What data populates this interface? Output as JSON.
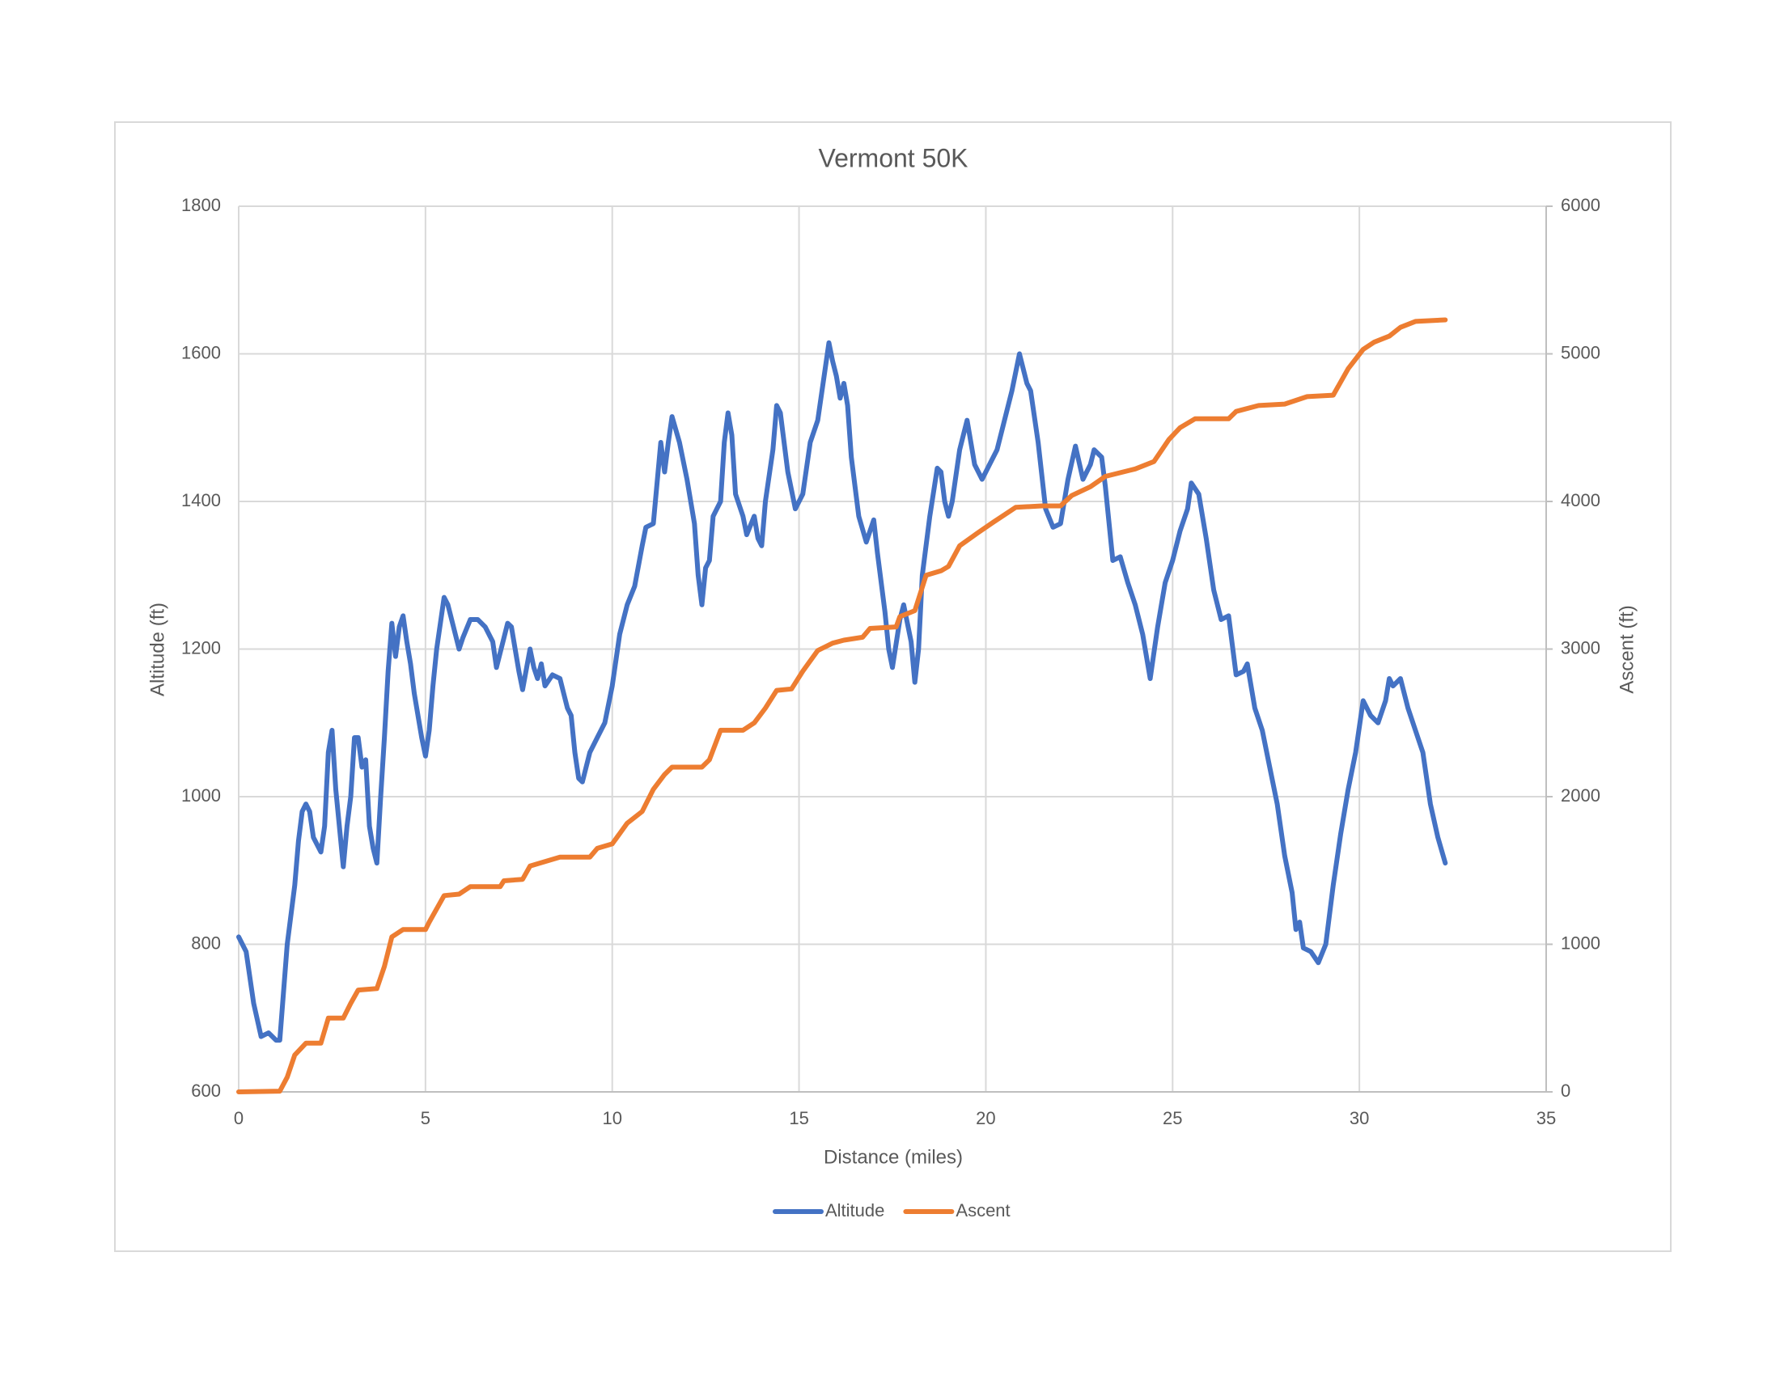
{
  "chart_data": {
    "type": "line",
    "title": "Vermont 50K",
    "x_label": "Distance (miles)",
    "y_label": "Altitude (ft)",
    "y2_label": "Ascent (ft)",
    "xlim": [
      0,
      35
    ],
    "xticks": [
      0,
      5,
      10,
      15,
      20,
      25,
      30,
      35
    ],
    "ylim": [
      600,
      1800
    ],
    "yticks": [
      600,
      800,
      1000,
      1200,
      1400,
      1600,
      1800
    ],
    "y2lim": [
      0,
      6000
    ],
    "y2ticks": [
      0,
      1000,
      2000,
      3000,
      4000,
      5000,
      6000
    ],
    "grid": true,
    "legend": "bottom",
    "series": [
      {
        "name": "Altitude",
        "color": "#4472c4",
        "x": [
          0,
          0.2,
          0.4,
          0.6,
          0.8,
          1.0,
          1.1,
          1.3,
          1.5,
          1.6,
          1.7,
          1.8,
          1.9,
          2.0,
          2.2,
          2.3,
          2.4,
          2.5,
          2.6,
          2.8,
          2.9,
          3.0,
          3.1,
          3.2,
          3.3,
          3.4,
          3.5,
          3.6,
          3.7,
          3.8,
          3.9,
          4.0,
          4.1,
          4.2,
          4.3,
          4.4,
          4.5,
          4.6,
          4.7,
          4.9,
          5.0,
          5.1,
          5.2,
          5.3,
          5.5,
          5.6,
          5.8,
          5.9,
          6.0,
          6.2,
          6.4,
          6.6,
          6.8,
          6.9,
          7.1,
          7.2,
          7.3,
          7.4,
          7.5,
          7.6,
          7.8,
          7.9,
          8.0,
          8.1,
          8.2,
          8.4,
          8.6,
          8.7,
          8.8,
          8.9,
          9.0,
          9.1,
          9.2,
          9.4,
          9.6,
          9.8,
          10.0,
          10.2,
          10.4,
          10.6,
          10.8,
          10.9,
          11.1,
          11.3,
          11.4,
          11.5,
          11.6,
          11.8,
          12.0,
          12.2,
          12.3,
          12.4,
          12.5,
          12.6,
          12.7,
          12.9,
          13.0,
          13.1,
          13.2,
          13.3,
          13.5,
          13.6,
          13.8,
          13.9,
          14.0,
          14.1,
          14.3,
          14.4,
          14.5,
          14.7,
          14.9,
          15.1,
          15.3,
          15.5,
          15.7,
          15.8,
          15.9,
          16.0,
          16.1,
          16.2,
          16.3,
          16.4,
          16.6,
          16.8,
          17.0,
          17.1,
          17.3,
          17.4,
          17.5,
          17.7,
          17.8,
          18.0,
          18.1,
          18.2,
          18.3,
          18.5,
          18.7,
          18.8,
          18.9,
          19.0,
          19.1,
          19.3,
          19.5,
          19.7,
          19.9,
          20.1,
          20.3,
          20.5,
          20.7,
          20.9,
          21.1,
          21.2,
          21.4,
          21.6,
          21.8,
          22.0,
          22.2,
          22.4,
          22.6,
          22.8,
          22.9,
          23.1,
          23.2,
          23.4,
          23.6,
          23.8,
          24.0,
          24.2,
          24.4,
          24.6,
          24.8,
          25.0,
          25.2,
          25.4,
          25.5,
          25.7,
          25.9,
          26.1,
          26.3,
          26.5,
          26.7,
          26.9,
          27.0,
          27.2,
          27.4,
          27.6,
          27.8,
          28.0,
          28.2,
          28.3,
          28.4,
          28.5,
          28.7,
          28.9,
          29.1,
          29.3,
          29.5,
          29.7,
          29.9,
          30.1,
          30.3,
          30.5,
          30.7,
          30.8,
          30.9,
          31.1,
          31.3,
          31.5,
          31.7,
          31.9,
          32.1,
          32.3
        ],
        "values": [
          810,
          790,
          720,
          675,
          680,
          670,
          670,
          800,
          880,
          940,
          980,
          990,
          980,
          945,
          925,
          960,
          1060,
          1090,
          1010,
          905,
          960,
          1000,
          1080,
          1080,
          1040,
          1050,
          960,
          930,
          910,
          1000,
          1080,
          1170,
          1235,
          1190,
          1230,
          1245,
          1210,
          1180,
          1140,
          1080,
          1055,
          1090,
          1150,
          1200,
          1270,
          1260,
          1220,
          1200,
          1215,
          1240,
          1240,
          1230,
          1210,
          1175,
          1215,
          1235,
          1230,
          1200,
          1170,
          1145,
          1200,
          1175,
          1160,
          1180,
          1150,
          1165,
          1160,
          1140,
          1120,
          1110,
          1060,
          1025,
          1020,
          1060,
          1080,
          1100,
          1150,
          1220,
          1260,
          1285,
          1340,
          1365,
          1370,
          1480,
          1440,
          1480,
          1515,
          1480,
          1430,
          1370,
          1300,
          1260,
          1310,
          1320,
          1380,
          1400,
          1480,
          1520,
          1490,
          1410,
          1380,
          1355,
          1380,
          1350,
          1340,
          1400,
          1470,
          1530,
          1520,
          1440,
          1390,
          1410,
          1480,
          1510,
          1580,
          1615,
          1590,
          1570,
          1540,
          1560,
          1530,
          1460,
          1380,
          1345,
          1375,
          1330,
          1250,
          1200,
          1175,
          1240,
          1260,
          1210,
          1155,
          1200,
          1300,
          1380,
          1445,
          1440,
          1400,
          1380,
          1400,
          1470,
          1510,
          1450,
          1430,
          1450,
          1470,
          1510,
          1550,
          1600,
          1560,
          1550,
          1480,
          1390,
          1365,
          1370,
          1430,
          1475,
          1430,
          1450,
          1470,
          1460,
          1420,
          1320,
          1325,
          1290,
          1260,
          1220,
          1160,
          1230,
          1290,
          1320,
          1360,
          1390,
          1425,
          1410,
          1350,
          1280,
          1240,
          1245,
          1165,
          1170,
          1180,
          1120,
          1090,
          1040,
          990,
          920,
          870,
          820,
          830,
          795,
          790,
          775,
          800,
          880,
          950,
          1010,
          1060,
          1130,
          1110,
          1100,
          1130,
          1160,
          1150,
          1160,
          1120,
          1090,
          1060,
          990,
          945,
          910
        ]
      },
      {
        "name": "Ascent",
        "color": "#ed7d31",
        "axis": "y2",
        "x": [
          0,
          1.1,
          1.3,
          1.5,
          1.8,
          2.2,
          2.4,
          2.8,
          3.0,
          3.2,
          3.7,
          3.9,
          4.1,
          4.4,
          5.0,
          5.1,
          5.5,
          5.9,
          6.2,
          7.0,
          7.1,
          7.6,
          7.8,
          8.2,
          8.6,
          9.4,
          9.6,
          10.0,
          10.4,
          10.8,
          11.1,
          11.4,
          11.6,
          12.4,
          12.6,
          12.9,
          13.5,
          13.8,
          14.1,
          14.4,
          14.8,
          15.1,
          15.5,
          15.9,
          16.2,
          16.7,
          16.9,
          17.6,
          17.7,
          18.1,
          18.4,
          18.8,
          19.0,
          19.3,
          19.8,
          20.2,
          20.8,
          21.5,
          22.0,
          22.3,
          22.8,
          23.2,
          24.0,
          24.5,
          24.9,
          25.2,
          25.6,
          26.5,
          26.7,
          27.3,
          28.0,
          28.6,
          29.3,
          29.7,
          30.1,
          30.4,
          30.8,
          31.1,
          31.5,
          32.3
        ],
        "values": [
          0,
          5,
          100,
          250,
          330,
          330,
          500,
          500,
          600,
          690,
          700,
          850,
          1050,
          1100,
          1100,
          1150,
          1330,
          1340,
          1390,
          1390,
          1430,
          1440,
          1530,
          1560,
          1590,
          1590,
          1650,
          1680,
          1820,
          1900,
          2050,
          2150,
          2200,
          2200,
          2250,
          2450,
          2450,
          2500,
          2600,
          2720,
          2730,
          2850,
          2990,
          3040,
          3060,
          3080,
          3140,
          3150,
          3220,
          3260,
          3500,
          3530,
          3560,
          3700,
          3790,
          3860,
          3960,
          3970,
          3970,
          4040,
          4100,
          4170,
          4220,
          4270,
          4420,
          4500,
          4560,
          4560,
          4610,
          4650,
          4660,
          4710,
          4720,
          4900,
          5030,
          5080,
          5120,
          5180,
          5220,
          5230
        ]
      }
    ]
  }
}
